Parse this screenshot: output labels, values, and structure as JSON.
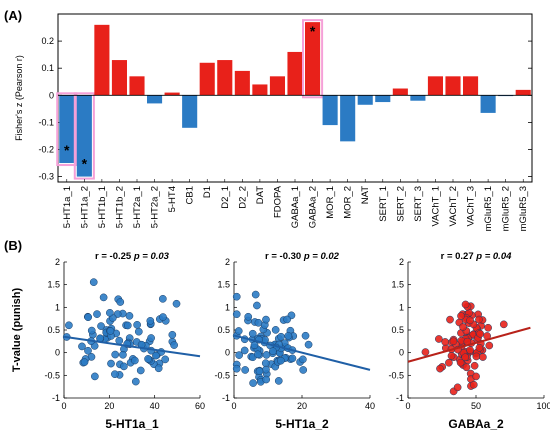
{
  "panel_a_label": "(A)",
  "panel_b_label": "(B)",
  "chart_data": [
    {
      "type": "bar",
      "ylabel": "Fisher's z (Pearson r)",
      "ylim": [
        -0.32,
        0.3
      ],
      "yticks": [
        -0.3,
        -0.2,
        -0.1,
        0,
        0.1,
        0.2
      ],
      "grid": false,
      "categories": [
        "5-HT1a_1",
        "5-HT1a_2",
        "5-HT1b_1",
        "5-HT1b_2",
        "5-HT2a_1",
        "5-HT2a_2",
        "5-HT4",
        "CB1",
        "D1",
        "D2_1",
        "D2_2",
        "DAT",
        "FDOPA",
        "GABAa_1",
        "GABAa_2",
        "MOR_1",
        "MOR_2",
        "NAT",
        "SERT_1",
        "SERT_2",
        "SERT_3",
        "VAChT_1",
        "VAChT_2",
        "VAChT_3",
        "mGluR5_1",
        "mGluR5_2",
        "mGluR5_3"
      ],
      "values": [
        -0.25,
        -0.3,
        0.26,
        0.13,
        0.07,
        -0.03,
        0.01,
        -0.12,
        0.12,
        0.13,
        0.09,
        0.04,
        0.07,
        0.16,
        0.27,
        -0.11,
        -0.17,
        -0.035,
        -0.025,
        0.025,
        -0.02,
        0.07,
        0.07,
        0.07,
        -0.065,
        -0.003,
        0.02
      ],
      "significant": [
        "5-HT1a_1",
        "5-HT1a_2",
        "GABAa_2"
      ],
      "significance_marker": "*",
      "colors": {
        "positive": "#e8211a",
        "negative": "#2b7bc4",
        "highlight": "#f5a0d8"
      }
    },
    {
      "type": "scatter",
      "ylabel": "T-value (punish)",
      "xlabel": "5-HT1a_1",
      "xlim": [
        0,
        60
      ],
      "xticks": [
        0,
        20,
        40,
        60
      ],
      "ylim": [
        -1,
        2
      ],
      "yticks": [
        -1,
        -0.5,
        0,
        0.5,
        1,
        1.5,
        2
      ],
      "r_text": "r = -0.25",
      "p_text": "p = 0.03",
      "color": "#2b7bc4",
      "line": {
        "x": [
          0,
          60
        ],
        "y": [
          0.35,
          -0.08
        ]
      }
    },
    {
      "type": "scatter",
      "xlabel": "5-HT1a_2",
      "xlim": [
        0,
        40
      ],
      "xticks": [
        0,
        20,
        40
      ],
      "ylim": [
        -1,
        2
      ],
      "yticks": [
        -1,
        -0.5,
        0,
        0.5,
        1,
        1.5,
        2
      ],
      "r_text": "r = -0.30",
      "p_text": "p = 0.02",
      "color": "#2b7bc4",
      "line": {
        "x": [
          0,
          40
        ],
        "y": [
          0.38,
          -0.38
        ]
      }
    },
    {
      "type": "scatter",
      "xlabel": "GABAa_2",
      "xlim": [
        0,
        100
      ],
      "xticks": [
        0,
        50,
        100
      ],
      "ylim": [
        -1,
        2
      ],
      "yticks": [
        -1,
        -0.5,
        0,
        0.5,
        1,
        1.5,
        2
      ],
      "r_text": "r = 0.27",
      "p_text": "p = 0.04",
      "color": "#e8211a",
      "line": {
        "x": [
          0,
          90
        ],
        "y": [
          -0.2,
          0.55
        ]
      }
    }
  ]
}
